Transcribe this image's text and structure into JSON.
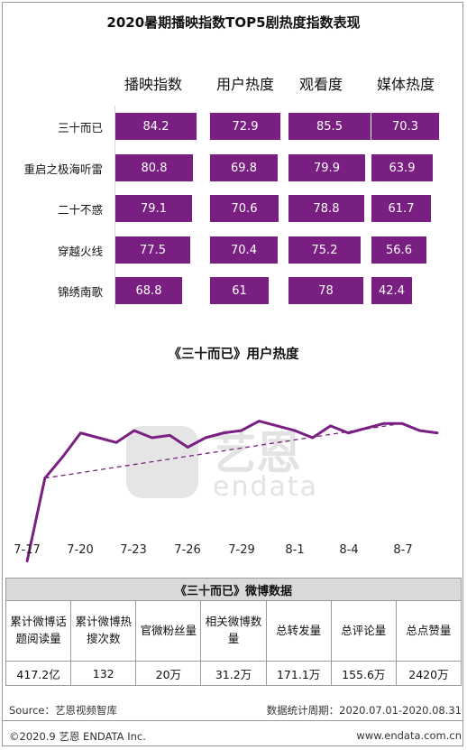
{
  "title": "2020暑期播映指数TOP5剧热度指数表现",
  "bar_section": {
    "columns": [
      "播映指数",
      "用户热度",
      "观看度",
      "媒体热度"
    ],
    "rows": [
      "三十而已",
      "重启之极海听雷",
      "二十不惑",
      "穿越火线",
      "锦绣南歌"
    ]
  },
  "line_section": {
    "title": "《三十而已》用户热度",
    "x_ticks": [
      "7-17",
      "7-20",
      "7-23",
      "7-26",
      "7-29",
      "8-1",
      "8-4",
      "8-7"
    ]
  },
  "weibo": {
    "caption": "《三十而已》微博数据",
    "headers": [
      "累计微博话题阅读量",
      "累计微博热搜次数",
      "官微粉丝量",
      "相关微博数量",
      "总转发量",
      "总评论量",
      "总点赞量"
    ],
    "values": [
      "417.2亿",
      "132",
      "20万",
      "31.2万",
      "171.1万",
      "155.6万",
      "2420万"
    ]
  },
  "footer": {
    "source": "Source：艺恩视频智库",
    "period": "数据统计周期：2020.07.01-2020.08.31",
    "copyright": "©2020.9 艺恩 ENDATA Inc.",
    "url": "www.endata.com.cn"
  },
  "watermark": {
    "cn": "艺恩",
    "en": "endata"
  },
  "colors": {
    "bar": "#7a1f82",
    "line": "#7a1f82",
    "table_caption_bg": "#d9d9d9"
  },
  "chart_data": [
    {
      "type": "bar",
      "title": "2020暑期播映指数TOP5剧热度指数表现",
      "orientation": "horizontal-small-multiples",
      "categories": [
        "三十而已",
        "重启之极海听雷",
        "二十不惑",
        "穿越火线",
        "锦绣南歌"
      ],
      "series": [
        {
          "name": "播映指数",
          "values": [
            84.2,
            80.8,
            79.1,
            77.5,
            68.8
          ]
        },
        {
          "name": "用户热度",
          "values": [
            72.9,
            69.8,
            70.6,
            70.4,
            61
          ]
        },
        {
          "name": "观看度",
          "values": [
            85.5,
            79.9,
            78.8,
            75.2,
            78
          ]
        },
        {
          "name": "媒体热度",
          "values": [
            70.3,
            63.9,
            61.7,
            56.6,
            42.4
          ]
        }
      ]
    },
    {
      "type": "line",
      "title": "《三十而已》用户热度",
      "x": [
        "7-17",
        "7-18",
        "7-19",
        "7-20",
        "7-21",
        "7-22",
        "7-23",
        "7-24",
        "7-25",
        "7-26",
        "7-27",
        "7-28",
        "7-29",
        "7-30",
        "7-31",
        "8-1",
        "8-2",
        "8-3",
        "8-4",
        "8-5",
        "8-6",
        "8-7",
        "8-8",
        "8-9"
      ],
      "series": [
        {
          "values": [
            22,
            57,
            66,
            76,
            74,
            72,
            77,
            74,
            75,
            70,
            74,
            76,
            77,
            81,
            79,
            77,
            74,
            79,
            76,
            78,
            80,
            80,
            77,
            76
          ]
        }
      ],
      "trendline": {
        "style": "dashed",
        "from": 57,
        "to": 80
      },
      "x_ticks": [
        "7-17",
        "7-20",
        "7-23",
        "7-26",
        "7-29",
        "8-1",
        "8-4",
        "8-7"
      ],
      "ylim": [
        0,
        100
      ],
      "grid": false
    }
  ]
}
